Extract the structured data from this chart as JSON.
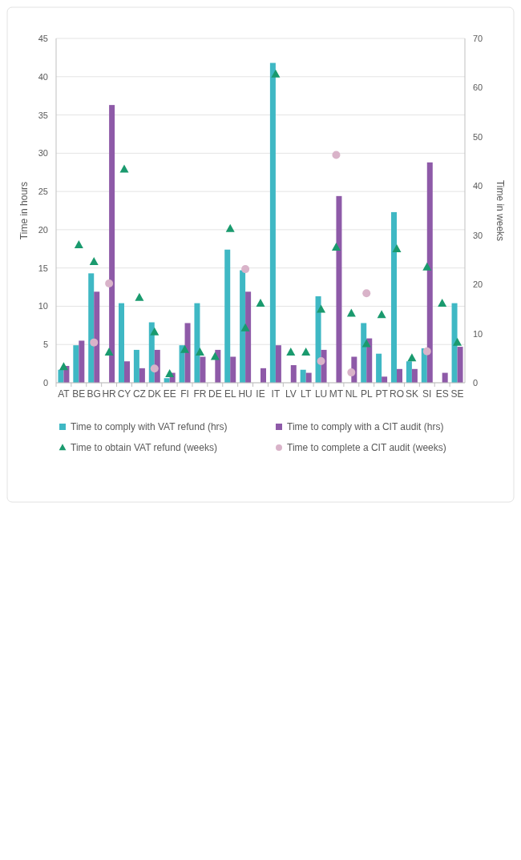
{
  "chart_data": {
    "type": "bar",
    "ylabel": "Time in hours",
    "y2label": "Time in weeks",
    "categories": [
      "AT",
      "BE",
      "BG",
      "HR",
      "CY",
      "CZ",
      "DK",
      "EE",
      "FI",
      "FR",
      "DE",
      "EL",
      "HU",
      "IE",
      "IT",
      "LV",
      "LT",
      "LU",
      "MT",
      "NL",
      "PL",
      "PT",
      "RO",
      "SK",
      "SI",
      "ES",
      "SE"
    ],
    "series": [
      {
        "name": "Time to comply with VAT refund (hrs)",
        "color": "#3fb8c4",
        "values": [
          1.7,
          4.9,
          14.3,
          null,
          10.4,
          4.3,
          7.9,
          0.6,
          4.9,
          10.4,
          null,
          17.4,
          14.7,
          null,
          41.8,
          null,
          1.7,
          11.3,
          null,
          null,
          7.8,
          3.8,
          22.3,
          2.8,
          4.5,
          null,
          10.4
        ]
      },
      {
        "name": "Time to comply with a CIT audit (hrs)",
        "color": "#8e5aa8",
        "values": [
          2.2,
          5.5,
          11.9,
          36.3,
          2.8,
          1.9,
          4.3,
          1.3,
          7.8,
          3.4,
          4.3,
          3.4,
          11.9,
          1.9,
          4.9,
          2.3,
          1.3,
          4.3,
          24.4,
          3.4,
          5.8,
          0.8,
          1.8,
          1.8,
          28.8,
          1.3,
          4.7
        ]
      },
      {
        "name": "Time to obtain VAT refund (weeks)",
        "type": "scatter",
        "axis": "y2",
        "marker": "triangle",
        "color": "#1a9a6e",
        "values": [
          3.2,
          28,
          24.6,
          6.2,
          43.4,
          17.3,
          10.3,
          1.8,
          6.7,
          6.2,
          5.3,
          31.3,
          11.1,
          16.1,
          62.7,
          6.2,
          6.2,
          14.9,
          27.5,
          14.1,
          7.9,
          13.8,
          27.2,
          5.0,
          23.5,
          16.1,
          8.2
        ]
      },
      {
        "name": "Time to complete a CIT audit (weeks)",
        "type": "scatter",
        "axis": "y2",
        "marker": "circle",
        "color": "#d9b3c9",
        "values": [
          null,
          null,
          8.2,
          20.2,
          null,
          null,
          2.9,
          null,
          null,
          null,
          null,
          null,
          23.1,
          null,
          null,
          null,
          null,
          4.4,
          46.3,
          2.1,
          18.2,
          null,
          null,
          null,
          6.4,
          null,
          null
        ]
      }
    ],
    "ylim": [
      0,
      45
    ],
    "yticks": [
      0,
      5,
      10,
      15,
      20,
      25,
      30,
      35,
      40,
      45
    ],
    "y2lim": [
      0,
      70
    ],
    "y2ticks": [
      0,
      10,
      20,
      30,
      40,
      50,
      60,
      70
    ],
    "grid": "y",
    "legend": "bottom"
  }
}
